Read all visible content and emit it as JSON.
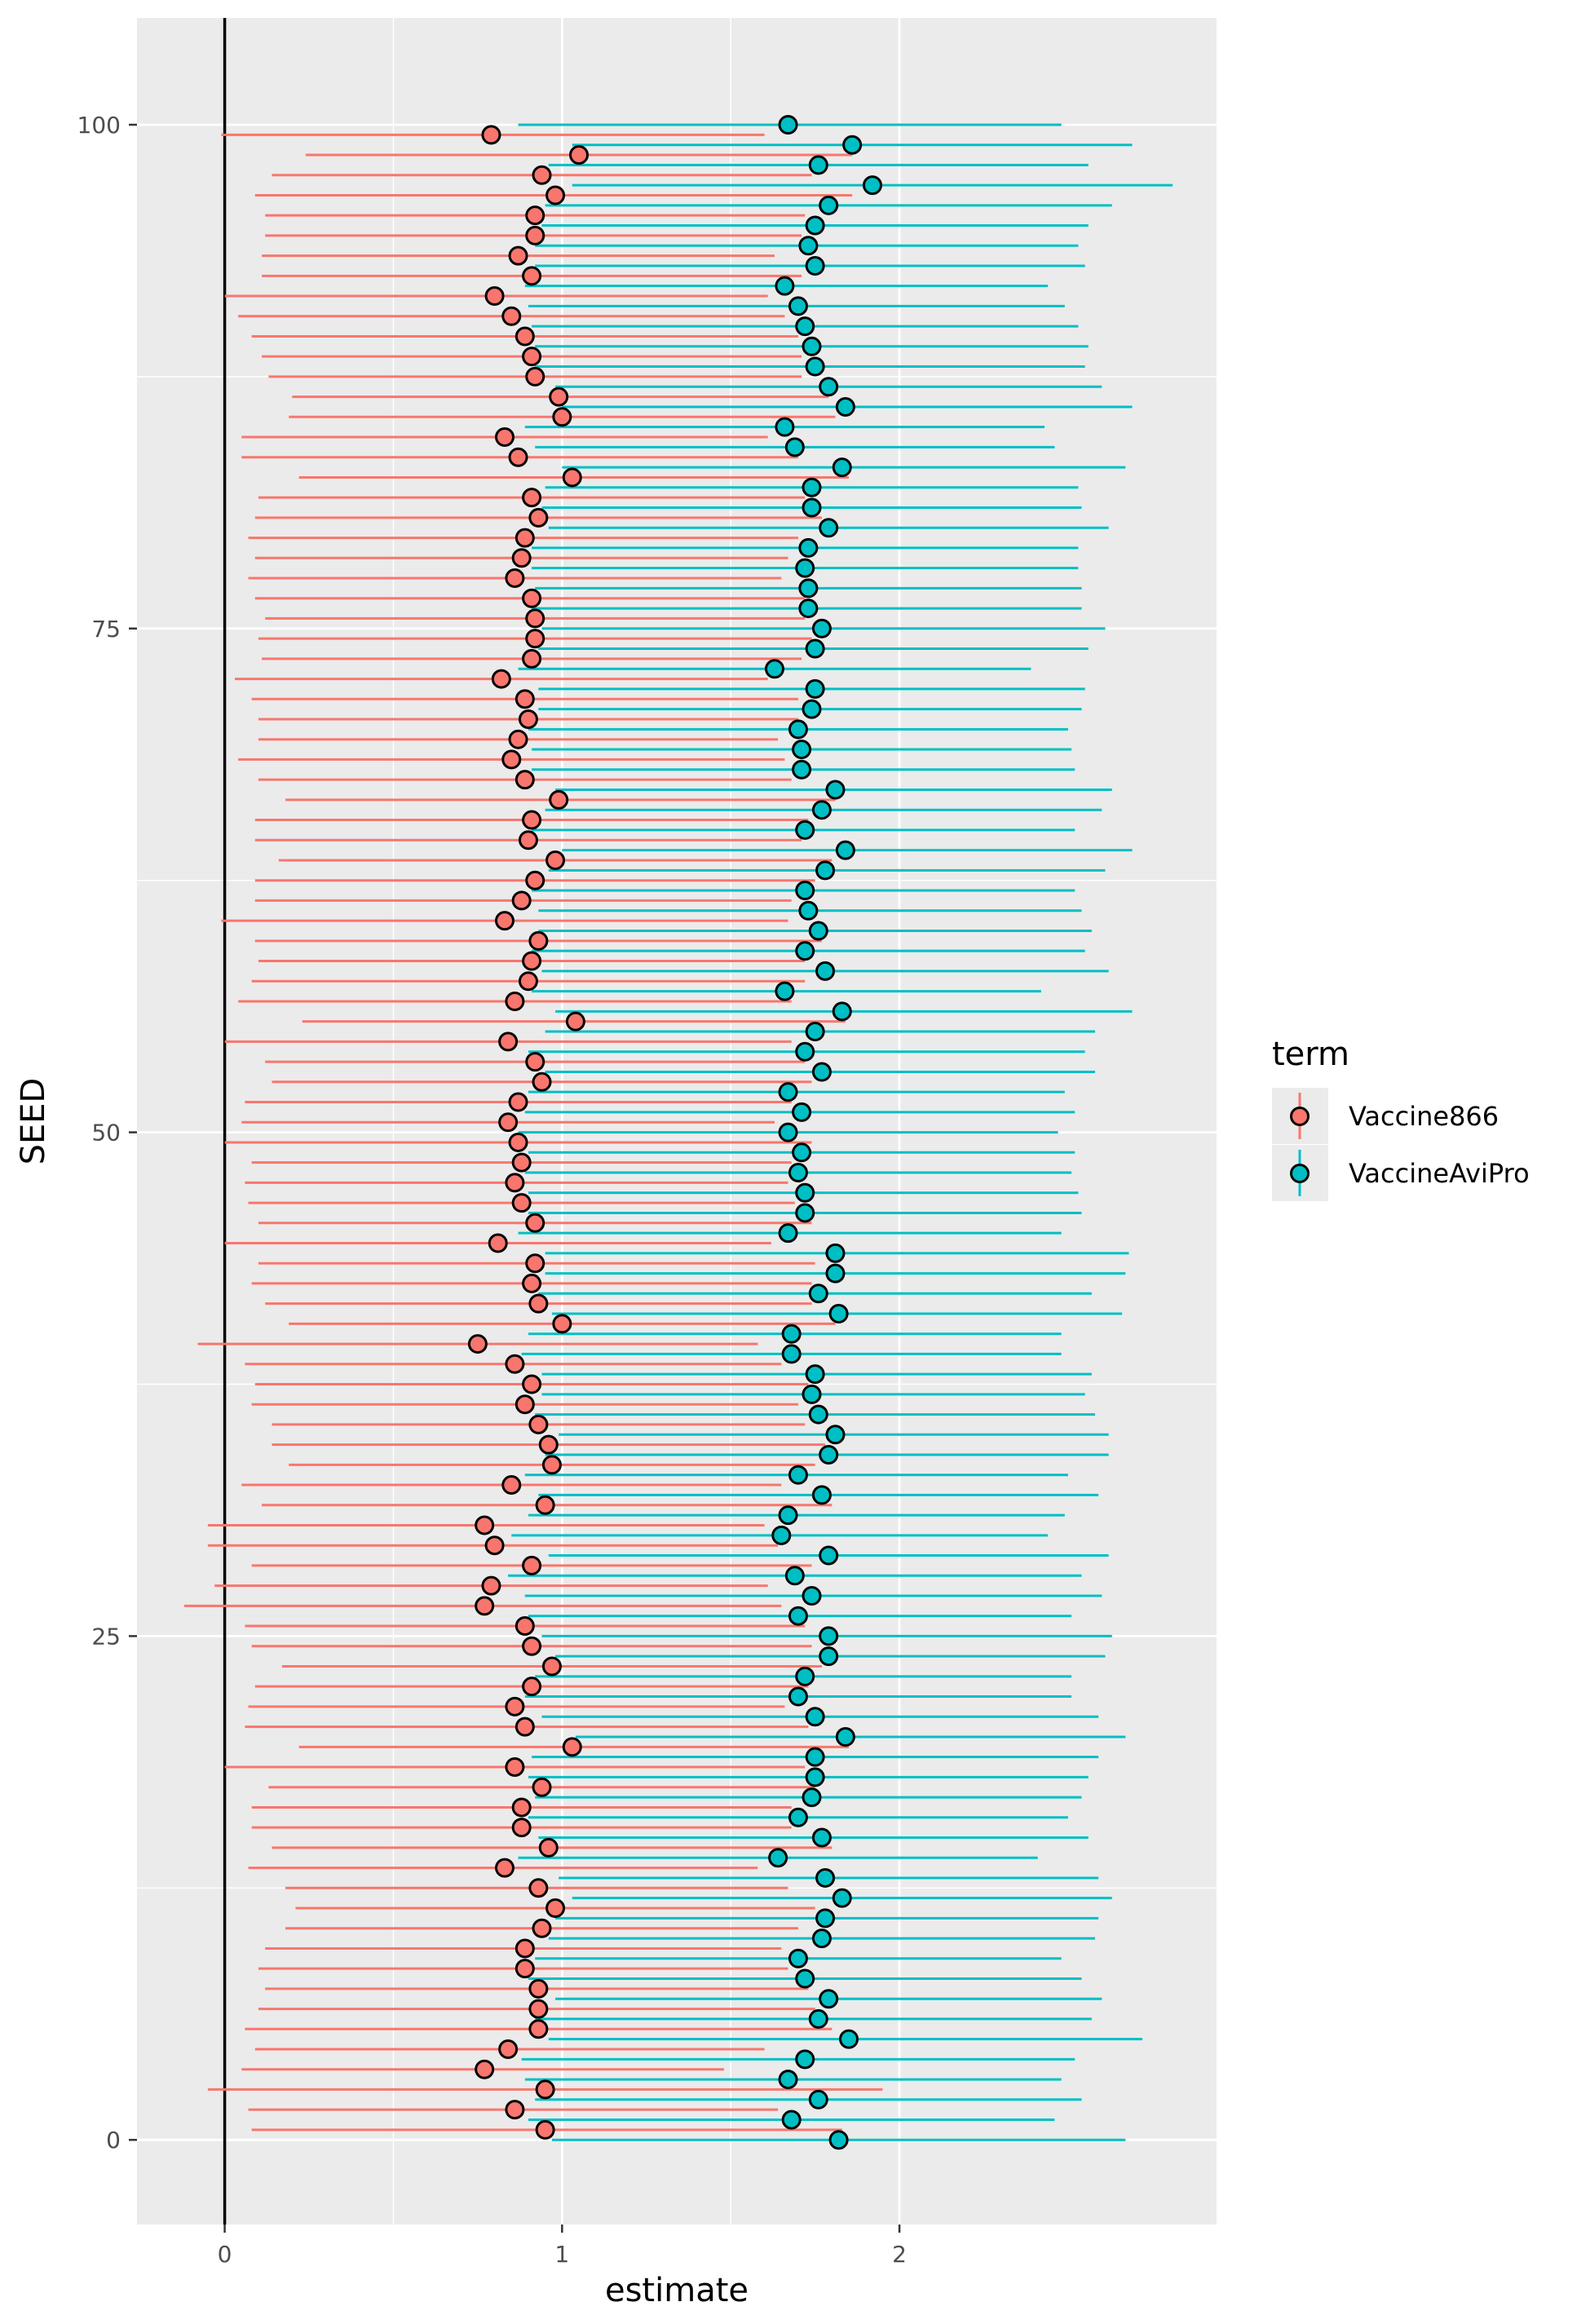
{
  "chart_data": {
    "type": "scatter",
    "subtype": "point-range",
    "xlabel": "estimate",
    "ylabel": "SEED",
    "xlim": [
      -0.26,
      2.94
    ],
    "ylim": [
      -4.2,
      105.3
    ],
    "x_ticks": [
      0,
      1,
      2
    ],
    "y_ticks": [
      0,
      25,
      50,
      75,
      100
    ],
    "x_tick_labels": [
      "0",
      "1",
      "2"
    ],
    "y_tick_labels": [
      "0",
      "25",
      "50",
      "75",
      "100"
    ],
    "reference_line_x": 0,
    "grid": true,
    "legend": {
      "title": "term",
      "position": "right"
    },
    "colors": {
      "Vaccine866": "#f8766d",
      "VaccineAviPro": "#00bfc4",
      "panel": "#ebebeb",
      "grid": "#ffffff"
    },
    "series": [
      {
        "name": "Vaccine866",
        "offset": 0.5,
        "estimate": [
          0.95,
          0.86,
          0.95,
          0.77,
          0.84,
          0.93,
          0.93,
          0.93,
          0.89,
          0.89,
          0.94,
          0.98,
          0.93,
          0.83,
          0.96,
          0.88,
          0.88,
          0.94,
          0.86,
          1.03,
          0.89,
          0.86,
          0.91,
          0.97,
          0.91,
          0.89,
          0.77,
          0.79,
          0.91,
          0.8,
          0.77,
          0.95,
          0.85,
          0.97,
          0.96,
          0.93,
          0.89,
          0.91,
          0.86,
          0.75,
          1.0,
          0.93,
          0.91,
          0.92,
          0.81,
          0.92,
          0.88,
          0.86,
          0.88,
          0.87,
          0.84,
          0.87,
          0.94,
          0.92,
          0.84,
          1.04,
          0.86,
          0.9,
          0.91,
          0.93,
          0.83,
          0.88,
          0.92,
          0.98,
          0.9,
          0.91,
          0.99,
          0.89,
          0.85,
          0.87,
          0.9,
          0.89,
          0.82,
          0.91,
          0.92,
          0.92,
          0.91,
          0.86,
          0.88,
          0.89,
          0.93,
          0.91,
          1.03,
          0.87,
          0.83,
          1.0,
          0.99,
          0.92,
          0.91,
          0.89,
          0.85,
          0.8,
          0.91,
          0.87,
          0.92,
          0.92,
          0.98,
          0.94,
          1.05,
          0.79
        ],
        "lower": [
          0.08,
          0.07,
          -0.05,
          0.05,
          0.09,
          0.06,
          0.1,
          0.12,
          0.1,
          0.12,
          0.18,
          0.21,
          0.18,
          0.07,
          0.14,
          0.08,
          0.08,
          0.13,
          0.0,
          0.22,
          0.06,
          0.07,
          0.09,
          0.17,
          0.08,
          0.06,
          -0.12,
          -0.03,
          0.08,
          -0.05,
          -0.05,
          0.11,
          0.05,
          0.19,
          0.14,
          0.14,
          0.08,
          0.09,
          0.06,
          -0.08,
          0.19,
          0.12,
          0.08,
          0.1,
          0.0,
          0.1,
          0.07,
          0.06,
          0.08,
          0.0,
          0.05,
          0.06,
          0.14,
          0.12,
          0.0,
          0.23,
          0.04,
          0.08,
          0.1,
          0.09,
          -0.01,
          0.09,
          0.09,
          0.16,
          0.09,
          0.09,
          0.18,
          0.1,
          0.04,
          0.1,
          0.1,
          0.08,
          0.03,
          0.11,
          0.1,
          0.12,
          0.09,
          0.07,
          0.09,
          0.07,
          0.09,
          0.1,
          0.22,
          0.05,
          0.05,
          0.19,
          0.2,
          0.13,
          0.11,
          0.08,
          0.04,
          0.0,
          0.11,
          0.11,
          0.12,
          0.12,
          0.09,
          0.14,
          0.24,
          -0.01
        ],
        "upper": [
          1.83,
          1.64,
          1.95,
          1.48,
          1.6,
          1.8,
          1.75,
          1.73,
          1.67,
          1.65,
          1.7,
          1.75,
          1.67,
          1.58,
          1.8,
          1.68,
          1.68,
          1.75,
          1.72,
          1.85,
          1.73,
          1.66,
          1.73,
          1.77,
          1.74,
          1.72,
          1.65,
          1.61,
          1.74,
          1.64,
          1.6,
          1.8,
          1.65,
          1.75,
          1.78,
          1.72,
          1.7,
          1.73,
          1.65,
          1.58,
          1.81,
          1.74,
          1.74,
          1.75,
          1.62,
          1.74,
          1.69,
          1.67,
          1.68,
          1.74,
          1.63,
          1.68,
          1.74,
          1.72,
          1.68,
          1.84,
          1.68,
          1.72,
          1.72,
          1.77,
          1.67,
          1.68,
          1.75,
          1.8,
          1.71,
          1.73,
          1.81,
          1.68,
          1.66,
          1.64,
          1.7,
          1.7,
          1.61,
          1.71,
          1.74,
          1.72,
          1.72,
          1.65,
          1.67,
          1.7,
          1.77,
          1.72,
          1.85,
          1.7,
          1.61,
          1.81,
          1.79,
          1.71,
          1.71,
          1.7,
          1.66,
          1.61,
          1.71,
          1.63,
          1.71,
          1.72,
          1.86,
          1.74,
          1.86,
          1.6
        ]
      },
      {
        "name": "VaccineAviPro",
        "offset": 0,
        "estimate": [
          1.82,
          1.68,
          1.76,
          1.67,
          1.72,
          1.85,
          1.76,
          1.79,
          1.72,
          1.7,
          1.77,
          1.78,
          1.83,
          1.78,
          1.64,
          1.77,
          1.7,
          1.74,
          1.75,
          1.75,
          1.84,
          1.75,
          1.7,
          1.72,
          1.79,
          1.79,
          1.7,
          1.74,
          1.69,
          1.79,
          1.65,
          1.67,
          1.77,
          1.7,
          1.79,
          1.81,
          1.76,
          1.74,
          1.75,
          1.68,
          1.68,
          1.82,
          1.76,
          1.81,
          1.81,
          1.67,
          1.72,
          1.72,
          1.7,
          1.71,
          1.67,
          1.71,
          1.67,
          1.77,
          1.72,
          1.75,
          1.83,
          1.66,
          1.78,
          1.72,
          1.76,
          1.73,
          1.72,
          1.78,
          1.84,
          1.72,
          1.77,
          1.81,
          1.71,
          1.71,
          1.7,
          1.74,
          1.75,
          1.63,
          1.75,
          1.77,
          1.73,
          1.73,
          1.72,
          1.73,
          1.79,
          1.74,
          1.74,
          1.83,
          1.69,
          1.66,
          1.84,
          1.79,
          1.75,
          1.74,
          1.72,
          1.7,
          1.66,
          1.75,
          1.73,
          1.75,
          1.79,
          1.92,
          1.76,
          1.86,
          1.67
        ],
        "lower": [
          0.97,
          0.9,
          0.92,
          0.89,
          0.88,
          0.96,
          0.92,
          0.98,
          0.9,
          0.92,
          0.96,
          0.98,
          1.03,
          0.99,
          0.87,
          0.93,
          0.9,
          0.92,
          0.9,
          0.91,
          1.04,
          0.94,
          0.89,
          0.92,
          0.98,
          0.94,
          0.9,
          0.89,
          0.84,
          0.96,
          0.85,
          0.9,
          0.93,
          0.89,
          0.95,
          0.99,
          0.92,
          0.94,
          0.94,
          0.88,
          0.9,
          0.97,
          0.93,
          0.95,
          0.95,
          0.87,
          0.9,
          0.9,
          0.89,
          0.9,
          0.87,
          0.89,
          0.9,
          0.95,
          0.9,
          0.95,
          0.98,
          0.91,
          0.94,
          0.91,
          0.93,
          0.93,
          0.91,
          0.96,
          1.0,
          0.91,
          0.95,
          0.98,
          0.91,
          0.91,
          0.9,
          0.93,
          0.93,
          0.87,
          0.93,
          0.94,
          0.91,
          0.92,
          0.91,
          0.91,
          0.96,
          0.94,
          0.95,
          1.0,
          0.92,
          0.89,
          1.0,
          0.98,
          0.92,
          0.92,
          0.91,
          0.9,
          0.89,
          0.92,
          0.92,
          0.94,
          0.95,
          1.03,
          0.96,
          1.03,
          0.87
        ],
        "upper": [
          2.67,
          2.46,
          2.54,
          2.48,
          2.52,
          2.72,
          2.57,
          2.6,
          2.54,
          2.48,
          2.58,
          2.59,
          2.63,
          2.59,
          2.41,
          2.56,
          2.5,
          2.54,
          2.56,
          2.59,
          2.67,
          2.59,
          2.51,
          2.51,
          2.61,
          2.63,
          2.51,
          2.6,
          2.54,
          2.62,
          2.44,
          2.49,
          2.59,
          2.5,
          2.62,
          2.62,
          2.58,
          2.55,
          2.57,
          2.48,
          2.48,
          2.66,
          2.57,
          2.67,
          2.68,
          2.48,
          2.54,
          2.53,
          2.51,
          2.52,
          2.47,
          2.52,
          2.49,
          2.58,
          2.55,
          2.58,
          2.69,
          2.42,
          2.62,
          2.55,
          2.57,
          2.54,
          2.52,
          2.61,
          2.69,
          2.52,
          2.6,
          2.63,
          2.52,
          2.51,
          2.5,
          2.54,
          2.55,
          2.39,
          2.56,
          2.61,
          2.54,
          2.54,
          2.53,
          2.53,
          2.62,
          2.54,
          2.53,
          2.67,
          2.46,
          2.43,
          2.69,
          2.6,
          2.55,
          2.56,
          2.53,
          2.49,
          2.44,
          2.55,
          2.53,
          2.56,
          2.63,
          2.81,
          2.56,
          2.69,
          2.48
        ]
      }
    ]
  }
}
